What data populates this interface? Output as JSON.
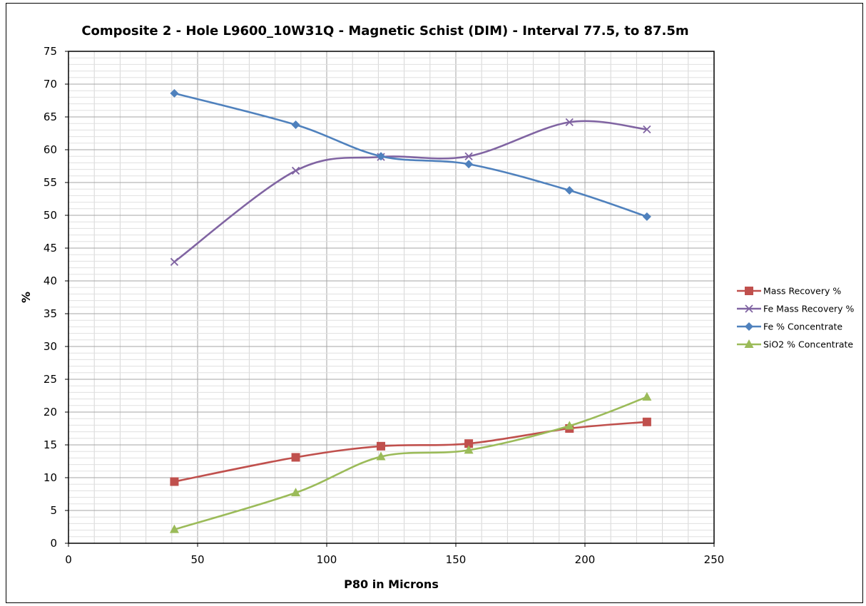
{
  "chart_data": {
    "type": "line",
    "title": "Composite 2 - Hole L9600_10W31Q - Magnetic Schist (DIM) - Interval 77.5, to 87.5m",
    "xlabel": "P80 in Microns",
    "ylabel": "%",
    "xlim": [
      0,
      250
    ],
    "ylim": [
      0,
      75
    ],
    "xticks": [
      0,
      50,
      100,
      150,
      200,
      250
    ],
    "yticks": [
      0,
      5,
      10,
      15,
      20,
      25,
      30,
      35,
      40,
      45,
      50,
      55,
      60,
      65,
      70,
      75
    ],
    "grid": true,
    "smooth": true,
    "legend_position": "right",
    "x": [
      41,
      88,
      121,
      155,
      194,
      224
    ],
    "series": [
      {
        "name": "Mass Recovery %",
        "values": [
          9.4,
          13.1,
          14.8,
          15.2,
          17.5,
          18.5
        ],
        "color": "#c0504d",
        "marker": "square"
      },
      {
        "name": "Fe Mass Recovery %",
        "values": [
          42.9,
          56.8,
          58.9,
          59.0,
          64.2,
          63.1
        ],
        "color": "#8064a2",
        "marker": "x"
      },
      {
        "name": "Fe % Concentrate",
        "values": [
          68.6,
          63.8,
          59.0,
          57.8,
          53.8,
          49.8
        ],
        "color": "#4f81bd",
        "marker": "diamond"
      },
      {
        "name": "SiO2 % Concentrate",
        "values": [
          2.1,
          7.7,
          13.2,
          14.2,
          17.9,
          22.3
        ],
        "color": "#9bbb59",
        "marker": "triangle"
      }
    ]
  }
}
